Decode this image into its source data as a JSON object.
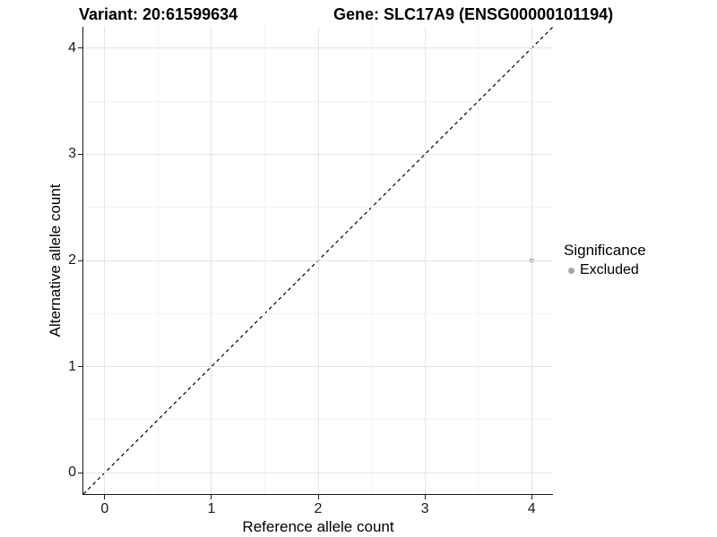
{
  "titles": {
    "left": "Variant: 20:61599634",
    "right": "Gene: SLC17A9 (ENSG00000101194)"
  },
  "legend": {
    "title": "Significance",
    "items": [
      {
        "label": "Excluded",
        "color": "#a6a6a6"
      }
    ]
  },
  "colors": {
    "grid_major": "#e4e4e4",
    "grid_minor": "#f2f2f2",
    "axis_line": "#1a1a1a",
    "reference_line": "#000000",
    "point": "#a6a6a6"
  },
  "chart_data": {
    "type": "scatter",
    "xlabel": "Reference allele count",
    "ylabel": "Alternative allele count",
    "xlim": [
      -0.2,
      4.2
    ],
    "ylim": [
      -0.2,
      4.2
    ],
    "x_major_ticks": [
      0,
      1,
      2,
      3,
      4
    ],
    "y_major_ticks": [
      0,
      1,
      2,
      3,
      4
    ],
    "x_minor_ticks": [
      0.5,
      1.5,
      2.5,
      3.5
    ],
    "y_minor_ticks": [
      0.5,
      1.5,
      2.5,
      3.5
    ],
    "grid": "major+minor",
    "legend_position": "right",
    "series": [
      {
        "name": "Excluded",
        "color": "#a6a6a6",
        "points": [
          {
            "x": 4,
            "y": 2
          }
        ]
      }
    ],
    "reference_line": {
      "slope": 1,
      "intercept": 0,
      "style": "dashed",
      "color": "#000000"
    }
  }
}
